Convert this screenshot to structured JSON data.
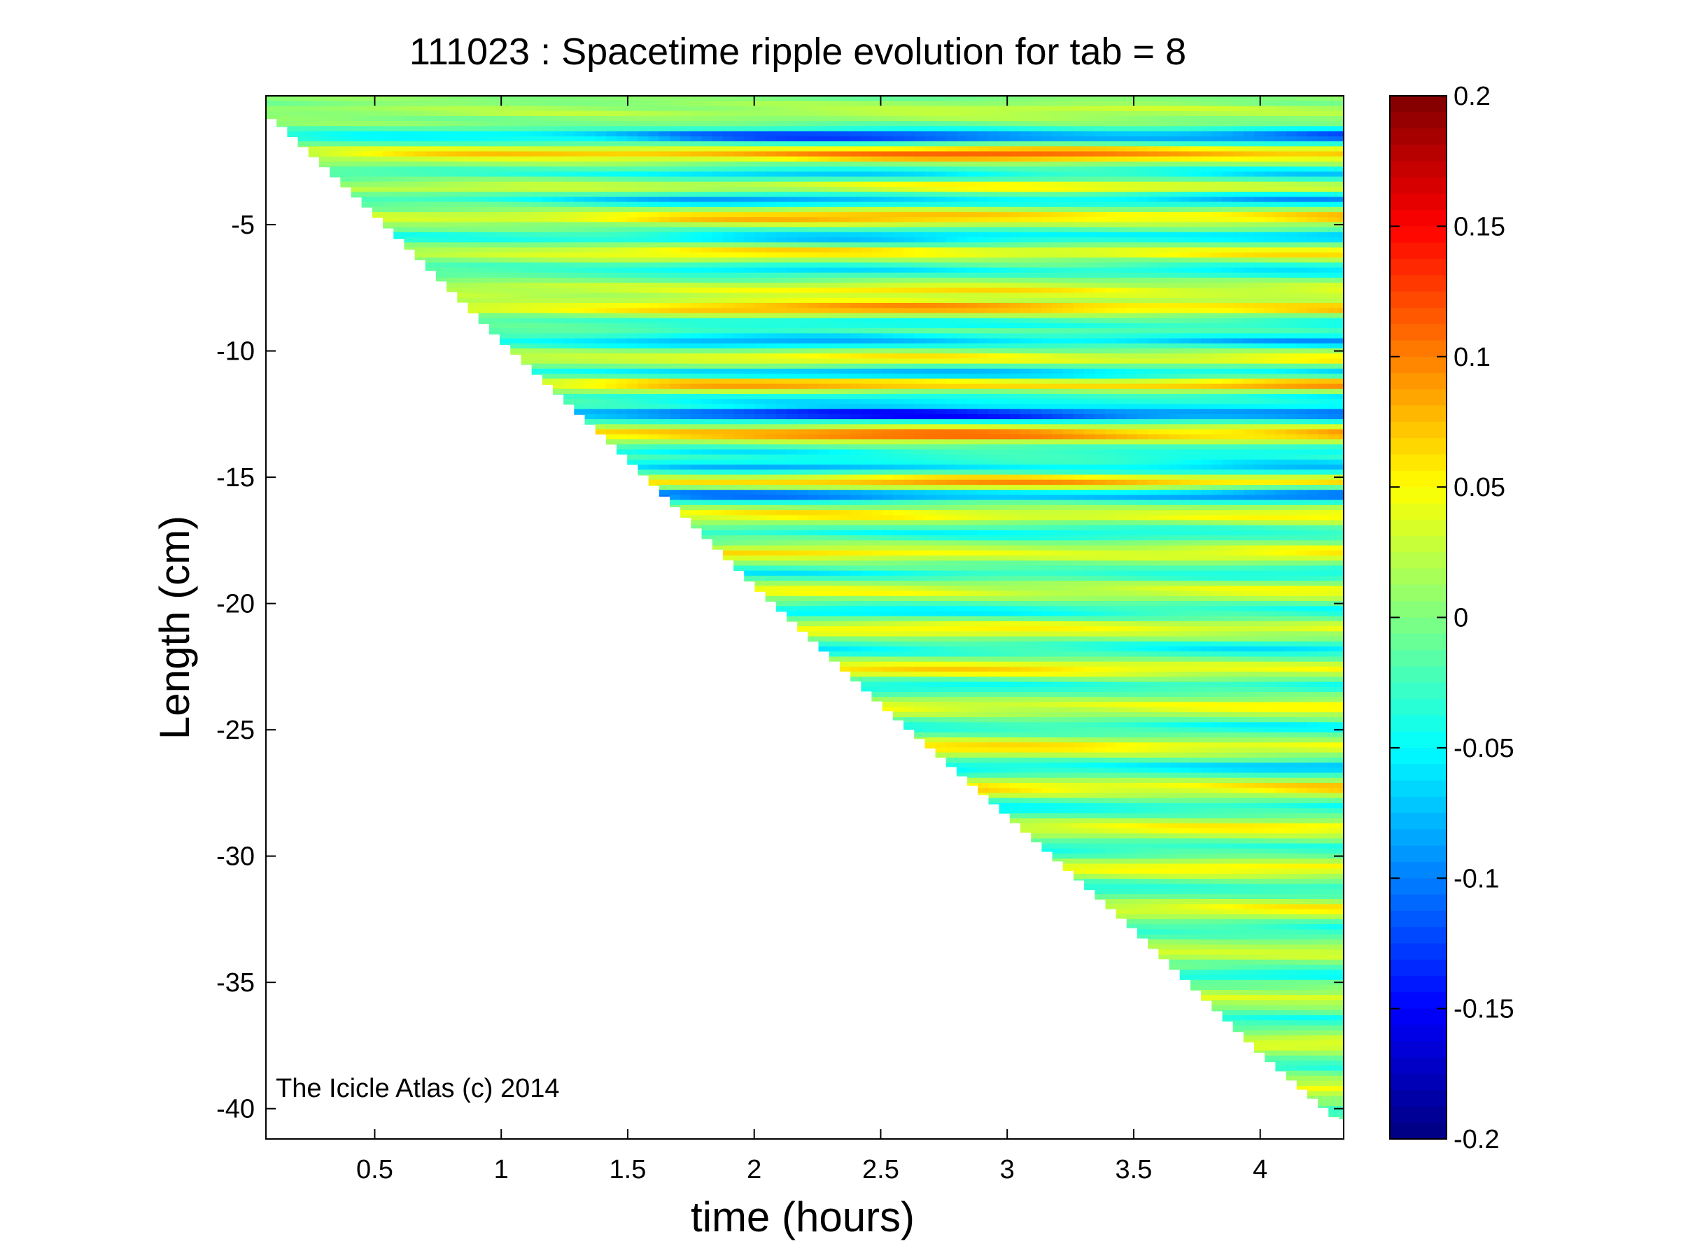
{
  "chart_data": {
    "type": "heatmap",
    "title": "111023 : Spacetime ripple evolution for tab = 8",
    "xlabel": "time (hours)",
    "ylabel": "Length (cm)",
    "xlim": [
      0.07,
      4.33
    ],
    "ylim": [
      -41.2,
      0.1
    ],
    "xticks": [
      {
        "value": 0.5,
        "label": "0.5"
      },
      {
        "value": 1,
        "label": "1"
      },
      {
        "value": 1.5,
        "label": "1.5"
      },
      {
        "value": 2,
        "label": "2"
      },
      {
        "value": 2.5,
        "label": "2.5"
      },
      {
        "value": 3,
        "label": "3"
      },
      {
        "value": 3.5,
        "label": "3.5"
      },
      {
        "value": 4,
        "label": "4"
      }
    ],
    "yticks": [
      {
        "value": -5,
        "label": "-5"
      },
      {
        "value": -10,
        "label": "-10"
      },
      {
        "value": -15,
        "label": "-15"
      },
      {
        "value": -20,
        "label": "-20"
      },
      {
        "value": -25,
        "label": "-25"
      },
      {
        "value": -30,
        "label": "-30"
      },
      {
        "value": -35,
        "label": "-35"
      },
      {
        "value": -40,
        "label": "-40"
      }
    ],
    "colorbar": {
      "colormap": "jet",
      "clim": [
        -0.2,
        0.2
      ],
      "ticks": [
        {
          "value": 0.2,
          "label": "0.2"
        },
        {
          "value": 0.15,
          "label": "0.15"
        },
        {
          "value": 0.1,
          "label": "0.1"
        },
        {
          "value": 0.05,
          "label": "0.05"
        },
        {
          "value": 0,
          "label": "0"
        },
        {
          "value": -0.05,
          "label": "-0.05"
        },
        {
          "value": -0.1,
          "label": "-0.1"
        },
        {
          "value": -0.15,
          "label": "-0.15"
        },
        {
          "value": -0.2,
          "label": "-0.2"
        }
      ]
    },
    "grid": false,
    "domain_edge": {
      "description_free": true,
      "t": [
        0.1,
        0.5,
        1.0,
        1.5,
        2.0,
        2.5,
        3.0,
        3.5,
        4.0,
        4.3
      ],
      "min_length": [
        -0.8,
        -4.6,
        -9.6,
        -14.3,
        -19.3,
        -24.0,
        -28.4,
        -32.9,
        -37.8,
        -40.4
      ]
    },
    "bands": [
      {
        "length": -0.5,
        "amplitude": 0.03,
        "period": 2.6,
        "phase": 0.3
      },
      {
        "length": -1.5,
        "amplitude": -0.14,
        "period": 2.2,
        "phase": 1.2
      },
      {
        "length": -2.2,
        "amplitude": 0.12,
        "period": 2.4,
        "phase": 0.2
      },
      {
        "length": -3.0,
        "amplitude": -0.07,
        "period": 2.0,
        "phase": 0.8
      },
      {
        "length": -3.5,
        "amplitude": 0.06,
        "period": 2.6,
        "phase": 0.5
      },
      {
        "length": -4.0,
        "amplitude": -0.09,
        "period": 2.2,
        "phase": 2.2
      },
      {
        "length": -4.7,
        "amplitude": 0.09,
        "period": 2.4,
        "phase": 1.7
      },
      {
        "length": -5.5,
        "amplitude": -0.08,
        "period": 2.1,
        "phase": 0.6
      },
      {
        "length": -6.1,
        "amplitude": 0.07,
        "period": 2.5,
        "phase": 2.8
      },
      {
        "length": -6.8,
        "amplitude": -0.06,
        "period": 2.0,
        "phase": 1.1
      },
      {
        "length": -7.6,
        "amplitude": 0.06,
        "period": 2.3,
        "phase": 0.4
      },
      {
        "length": -8.3,
        "amplitude": 0.1,
        "period": 2.6,
        "phase": 1.9
      },
      {
        "length": -8.9,
        "amplitude": -0.05,
        "period": 2.2,
        "phase": 0.9
      },
      {
        "length": -9.6,
        "amplitude": -0.09,
        "period": 2.4,
        "phase": 2.5
      },
      {
        "length": -10.3,
        "amplitude": 0.06,
        "period": 2.0,
        "phase": 0.1
      },
      {
        "length": -10.9,
        "amplitude": -0.1,
        "period": 2.5,
        "phase": 1.4
      },
      {
        "length": -11.3,
        "amplitude": 0.11,
        "period": 2.3,
        "phase": 2.1
      },
      {
        "length": -11.9,
        "amplitude": -0.06,
        "period": 2.1,
        "phase": 0.7
      },
      {
        "length": -12.5,
        "amplitude": -0.16,
        "period": 2.6,
        "phase": 1.6
      },
      {
        "length": -13.3,
        "amplitude": 0.12,
        "period": 2.2,
        "phase": 0.2
      },
      {
        "length": -14.0,
        "amplitude": -0.05,
        "period": 2.4,
        "phase": 2.9
      },
      {
        "length": -14.6,
        "amplitude": -0.08,
        "period": 2.0,
        "phase": 1.2
      },
      {
        "length": -15.2,
        "amplitude": 0.1,
        "period": 2.5,
        "phase": 0.6
      },
      {
        "length": -15.7,
        "amplitude": -0.12,
        "period": 2.3,
        "phase": 2.3
      },
      {
        "length": -16.5,
        "amplitude": 0.06,
        "period": 2.1,
        "phase": 1.0
      },
      {
        "length": -17.2,
        "amplitude": -0.05,
        "period": 2.6,
        "phase": 0.3
      },
      {
        "length": -18.0,
        "amplitude": 0.06,
        "period": 2.2,
        "phase": 1.8
      },
      {
        "length": -18.8,
        "amplitude": -0.05,
        "period": 2.4,
        "phase": 2.6
      },
      {
        "length": -19.5,
        "amplitude": 0.05,
        "period": 2.0,
        "phase": 0.9
      },
      {
        "length": -20.3,
        "amplitude": -0.06,
        "period": 2.5,
        "phase": 1.5
      },
      {
        "length": -21.0,
        "amplitude": 0.06,
        "period": 2.3,
        "phase": 0.2
      },
      {
        "length": -21.8,
        "amplitude": -0.06,
        "period": 2.1,
        "phase": 2.0
      },
      {
        "length": -22.6,
        "amplitude": 0.07,
        "period": 2.6,
        "phase": 1.1
      },
      {
        "length": -23.3,
        "amplitude": -0.05,
        "period": 2.2,
        "phase": 0.5
      },
      {
        "length": -24.1,
        "amplitude": 0.06,
        "period": 2.4,
        "phase": 2.7
      },
      {
        "length": -24.9,
        "amplitude": -0.05,
        "period": 2.0,
        "phase": 1.3
      },
      {
        "length": -25.7,
        "amplitude": 0.07,
        "period": 2.5,
        "phase": 0.8
      },
      {
        "length": -26.5,
        "amplitude": -0.08,
        "period": 2.3,
        "phase": 2.2
      },
      {
        "length": -27.3,
        "amplitude": 0.08,
        "period": 2.1,
        "phase": 0.4
      },
      {
        "length": -28.1,
        "amplitude": -0.06,
        "period": 2.6,
        "phase": 1.7
      },
      {
        "length": -28.9,
        "amplitude": 0.06,
        "period": 2.2,
        "phase": 2.9
      },
      {
        "length": -29.7,
        "amplitude": -0.05,
        "period": 2.4,
        "phase": 0.6
      },
      {
        "length": -30.5,
        "amplitude": 0.06,
        "period": 2.0,
        "phase": 1.9
      },
      {
        "length": -31.3,
        "amplitude": -0.05,
        "period": 2.5,
        "phase": 1.0
      },
      {
        "length": -32.1,
        "amplitude": 0.06,
        "period": 2.3,
        "phase": 2.4
      },
      {
        "length": -32.9,
        "amplitude": -0.05,
        "period": 2.1,
        "phase": 0.2
      },
      {
        "length": -33.8,
        "amplitude": 0.05,
        "period": 2.6,
        "phase": 1.6
      },
      {
        "length": -34.7,
        "amplitude": -0.05,
        "period": 2.2,
        "phase": 2.1
      },
      {
        "length": -35.6,
        "amplitude": 0.05,
        "period": 2.4,
        "phase": 0.7
      },
      {
        "length": -36.5,
        "amplitude": -0.04,
        "period": 2.0,
        "phase": 1.4
      },
      {
        "length": -37.4,
        "amplitude": 0.05,
        "period": 2.5,
        "phase": 2.6
      },
      {
        "length": -38.3,
        "amplitude": -0.04,
        "period": 2.3,
        "phase": 0.9
      },
      {
        "length": -39.2,
        "amplitude": 0.05,
        "period": 2.1,
        "phase": 1.8
      },
      {
        "length": -40.1,
        "amplitude": -0.04,
        "period": 2.6,
        "phase": 0.3
      }
    ]
  },
  "watermark": "The Icicle Atlas (c) 2014"
}
